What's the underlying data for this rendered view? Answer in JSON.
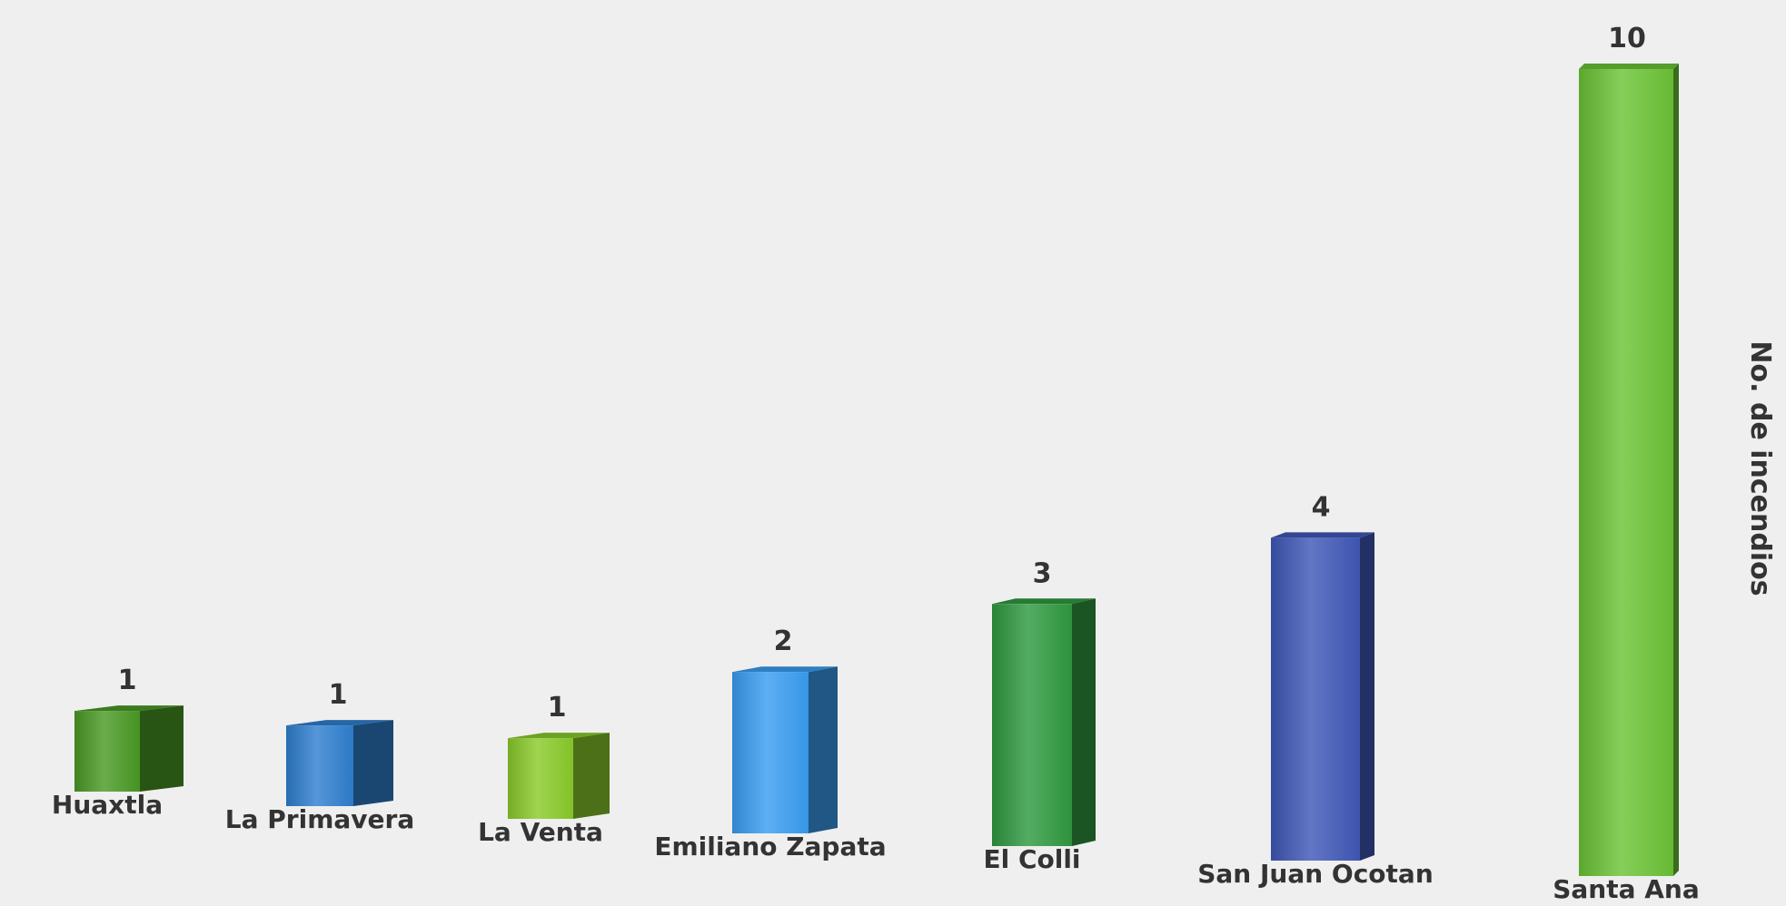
{
  "chart_data": {
    "type": "bar",
    "title": "",
    "xlabel": "",
    "ylabel": "No. de incendios",
    "categories": [
      "Huaxtla",
      "La Primavera",
      "La Venta",
      "Emiliano Zapata",
      "El Colli",
      "San Juan Ocotan",
      "Santa Ana"
    ],
    "values": [
      1,
      1,
      1,
      2,
      3,
      4,
      10
    ],
    "colors": [
      "#4a9a25",
      "#2f7fd0",
      "#8acb2a",
      "#3a9ef2",
      "#2f9a40",
      "#4058b8",
      "#6cc436"
    ],
    "style": "3d-columns",
    "grid": false,
    "legend": "none"
  }
}
